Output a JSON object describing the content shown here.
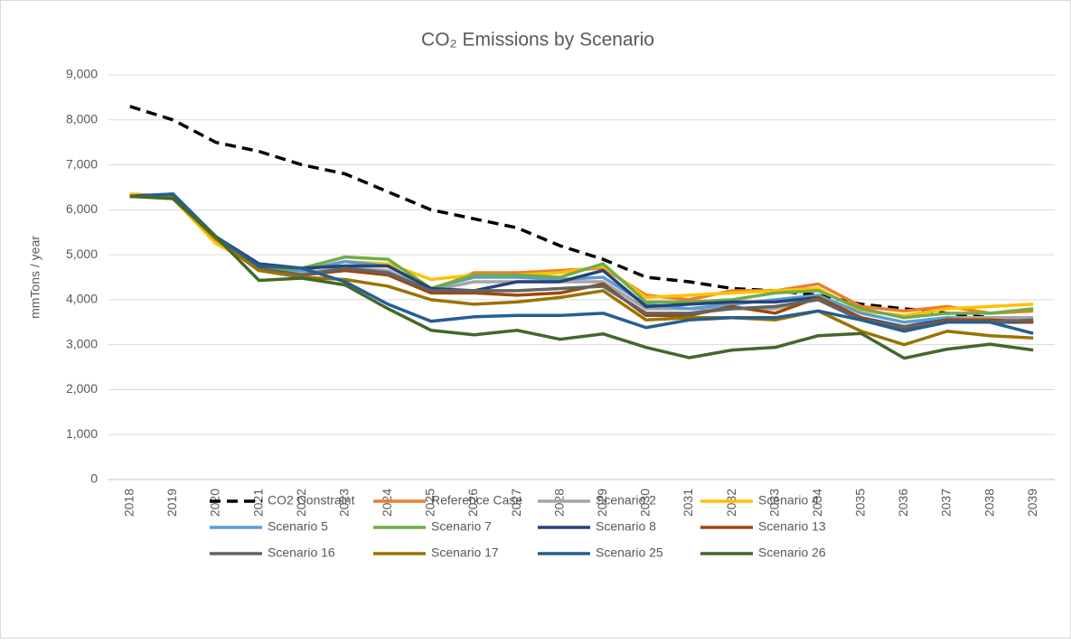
{
  "chart_data": {
    "type": "line",
    "title": "CO₂ Emissions  by Scenario",
    "y_label": "mmTons / year",
    "categories": [
      "2018",
      "2019",
      "2020",
      "2021",
      "2022",
      "2023",
      "2024",
      "2025",
      "2026",
      "2027",
      "2028",
      "2029",
      "2030",
      "2031",
      "2032",
      "2033",
      "2034",
      "2035",
      "2036",
      "2037",
      "2038",
      "2039"
    ],
    "ylim": [
      0,
      9000
    ],
    "yticks": [
      0,
      {
        "value": 1000,
        "label": "1,000"
      },
      {
        "value": 2000,
        "label": "2,000"
      },
      {
        "value": 3000,
        "label": "3,000"
      },
      {
        "value": 4000,
        "label": "4,000"
      },
      {
        "value": 5000,
        "label": "5,000"
      },
      {
        "value": 6000,
        "label": "6,000"
      },
      {
        "value": 7000,
        "label": "7,000"
      },
      {
        "value": 8000,
        "label": "8,000"
      },
      {
        "value": 9000,
        "label": "9,000"
      }
    ],
    "grid": true,
    "legend": "bottom",
    "series": [
      {
        "name": "CO2 Constraint",
        "color": "#000000",
        "dashed": true,
        "values": [
          8300,
          8000,
          7500,
          7300,
          7000,
          6800,
          6400,
          6000,
          5800,
          5600,
          5200,
          4900,
          4500,
          4400,
          4250,
          4200,
          4100,
          3900,
          3800,
          3700,
          3600,
          3500
        ]
      },
      {
        "name": "Reference Case",
        "color": "#ed7d31",
        "values": [
          6350,
          6300,
          5350,
          4700,
          4550,
          4650,
          4600,
          4200,
          4600,
          4600,
          4650,
          4700,
          4100,
          4000,
          4200,
          4200,
          4350,
          3850,
          3750,
          3850,
          3700,
          3750
        ]
      },
      {
        "name": "Scenario 2",
        "color": "#a5a5a5",
        "values": [
          6300,
          6300,
          5350,
          4700,
          4600,
          4700,
          4650,
          4200,
          4400,
          4400,
          4400,
          4400,
          3800,
          3800,
          3800,
          3800,
          4050,
          3600,
          3400,
          3600,
          3600,
          3600
        ]
      },
      {
        "name": "Scenario 4",
        "color": "#ffc000",
        "values": [
          6350,
          6250,
          5250,
          4750,
          4650,
          4850,
          4800,
          4450,
          4550,
          4550,
          4600,
          4750,
          4050,
          4100,
          4150,
          4200,
          4250,
          3750,
          3650,
          3800,
          3850,
          3900
        ]
      },
      {
        "name": "Scenario 5",
        "color": "#5b9bd5",
        "values": [
          6300,
          6300,
          5350,
          4700,
          4650,
          4850,
          4750,
          4250,
          4500,
          4500,
          4450,
          4500,
          3900,
          3800,
          3900,
          4000,
          4100,
          3700,
          3500,
          3600,
          3500,
          3500
        ]
      },
      {
        "name": "Scenario 7",
        "color": "#70ad47",
        "values": [
          6300,
          6250,
          5350,
          4650,
          4700,
          4950,
          4900,
          4250,
          4550,
          4550,
          4500,
          4800,
          3950,
          3950,
          4000,
          4150,
          4200,
          3800,
          3600,
          3700,
          3700,
          3800
        ]
      },
      {
        "name": "Scenario 8",
        "color": "#264478",
        "values": [
          6300,
          6350,
          5400,
          4800,
          4700,
          4750,
          4750,
          4250,
          4200,
          4400,
          4400,
          4650,
          3850,
          3900,
          3950,
          3950,
          4050,
          3600,
          3400,
          3550,
          3500,
          3500
        ]
      },
      {
        "name": "Scenario 13",
        "color": "#9e480e",
        "values": [
          6300,
          6300,
          5350,
          4650,
          4550,
          4650,
          4550,
          4150,
          4150,
          4100,
          4150,
          4350,
          3650,
          3650,
          3850,
          3700,
          4050,
          3600,
          3350,
          3550,
          3550,
          3500
        ]
      },
      {
        "name": "Scenario 16",
        "color": "#636363",
        "values": [
          6300,
          6300,
          5400,
          4700,
          4550,
          4700,
          4600,
          4200,
          4200,
          4200,
          4250,
          4300,
          3700,
          3700,
          3800,
          3850,
          4000,
          3550,
          3400,
          3500,
          3500,
          3550
        ]
      },
      {
        "name": "Scenario 17",
        "color": "#997300",
        "values": [
          6300,
          6300,
          5350,
          4650,
          4500,
          4450,
          4300,
          4000,
          3900,
          3950,
          4050,
          4200,
          3550,
          3600,
          3600,
          3550,
          3750,
          3300,
          3000,
          3300,
          3200,
          3150
        ]
      },
      {
        "name": "Scenario 25",
        "color": "#255e91",
        "values": [
          6300,
          6350,
          5400,
          4750,
          4700,
          4400,
          3900,
          3520,
          3620,
          3650,
          3650,
          3700,
          3380,
          3550,
          3600,
          3600,
          3750,
          3550,
          3300,
          3500,
          3500,
          3250
        ]
      },
      {
        "name": "Scenario 26",
        "color": "#43682b",
        "values": [
          6300,
          6250,
          5400,
          4430,
          4480,
          4330,
          3800,
          3320,
          3220,
          3320,
          3120,
          3240,
          2940,
          2710,
          2880,
          2940,
          3200,
          3250,
          2700,
          2900,
          3010,
          2880
        ]
      }
    ]
  }
}
